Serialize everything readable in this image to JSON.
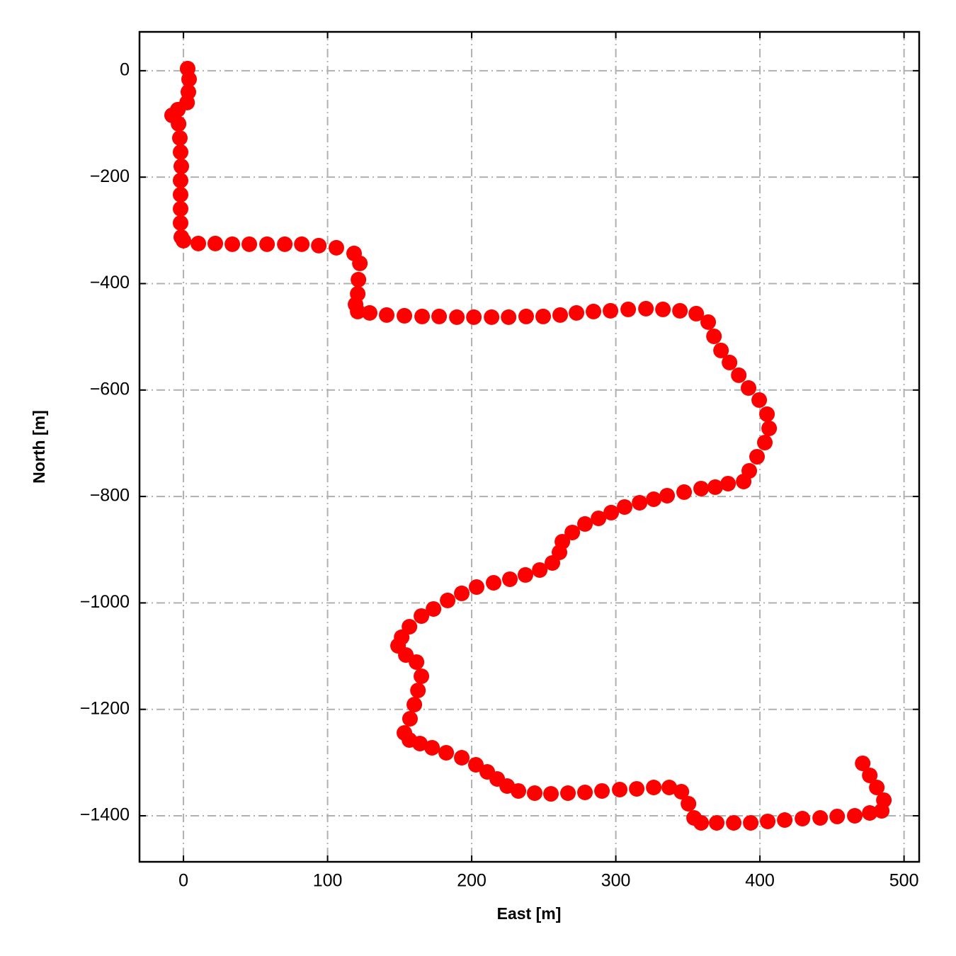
{
  "chart_data": {
    "type": "scatter",
    "xlabel": "East [m]",
    "ylabel": "North [m]",
    "xlim": [
      -30.5,
      510.5
    ],
    "ylim": [
      -1486.5,
      73
    ],
    "xticks": [
      0,
      100,
      200,
      300,
      400,
      500
    ],
    "yticks": [
      0,
      {
        "value": -200,
        "label": "−200"
      },
      {
        "value": -400,
        "label": "−400"
      },
      {
        "value": -600,
        "label": "−600"
      },
      {
        "value": -800,
        "label": "−800"
      },
      {
        "value": -1000,
        "label": "−1000"
      },
      {
        "value": -1200,
        "label": "−1200"
      },
      {
        "value": -1400,
        "label": "−1400"
      }
    ],
    "grid": true,
    "color": "#ff0000",
    "x": [
      2.9,
      3.9,
      3.4,
      2.5,
      -3.9,
      -7.9,
      -3.4,
      -2.5,
      -2.0,
      -1.5,
      -2.0,
      -2.0,
      -2.0,
      -2.0,
      -1.5,
      0,
      10.3,
      22.1,
      33.9,
      45.7,
      58.0,
      70.3,
      82.1,
      93.9,
      106.1,
      118.4,
      122.4,
      121.4,
      120.9,
      119.4,
      120.9,
      129.2,
      141.0,
      153.3,
      165.6,
      177.4,
      189.7,
      201.5,
      213.8,
      225.6,
      237.8,
      249.6,
      261.4,
      272.7,
      284.5,
      296.3,
      308.6,
      320.9,
      332.7,
      344.5,
      355.8,
      364.1,
      368.1,
      373.0,
      378.9,
      385.3,
      392.1,
      399.5,
      404.9,
      406.4,
      403.4,
      398.0,
      392.6,
      388.7,
      377.9,
      369.0,
      359.2,
      347.4,
      335.6,
      326.3,
      316.5,
      306.1,
      296.8,
      288.0,
      278.6,
      269.8,
      262.9,
      260.9,
      256.0,
      247.2,
      237.3,
      226.5,
      215.2,
      203.4,
      193.1,
      183.3,
      173.5,
      165.1,
      156.8,
      151.4,
      148.9,
      154.3,
      161.7,
      165.1,
      162.7,
      160.2,
      157.2,
      153.3,
      156.8,
      164.1,
      172.5,
      182.3,
      193.1,
      202.9,
      210.8,
      217.7,
      224.6,
      232.4,
      243.7,
      255.0,
      266.8,
      278.6,
      290.4,
      302.7,
      314.5,
      326.3,
      337.1,
      345.5,
      350.4,
      354.3,
      359.2,
      370.0,
      381.8,
      393.6,
      405.4,
      417.2,
      429.5,
      441.8,
      453.6,
      465.8,
      476.2,
      484.5,
      486.0,
      481.1,
      476.2,
      471.3
    ],
    "values": [
      4.0,
      -16.0,
      -39.9,
      -59.9,
      -73.2,
      -83.8,
      -99.8,
      -126.4,
      -153.0,
      -179.7,
      -206.3,
      -232.9,
      -259.5,
      -286.1,
      -312.7,
      -319.4,
      -324.7,
      -324.7,
      -326.0,
      -326.0,
      -326.0,
      -326.0,
      -326.0,
      -328.7,
      -332.7,
      -343.3,
      -362.0,
      -392.6,
      -419.2,
      -439.2,
      -452.5,
      -455.1,
      -459.1,
      -460.5,
      -461.8,
      -461.8,
      -463.1,
      -463.1,
      -463.1,
      -463.1,
      -461.8,
      -461.8,
      -459.1,
      -455.1,
      -452.5,
      -451.1,
      -448.5,
      -447.1,
      -448.5,
      -451.1,
      -456.5,
      -472.4,
      -499.1,
      -525.7,
      -548.3,
      -572.2,
      -596.2,
      -618.8,
      -645.4,
      -672.1,
      -698.7,
      -725.3,
      -751.9,
      -771.9,
      -775.9,
      -782.5,
      -785.2,
      -791.8,
      -798.5,
      -805.2,
      -811.8,
      -819.8,
      -830.4,
      -841.1,
      -851.7,
      -867.7,
      -885.0,
      -905.0,
      -924.9,
      -938.2,
      -947.5,
      -955.5,
      -962.2,
      -970.2,
      -982.1,
      -995.4,
      -1011.4,
      -1024.7,
      -1044.7,
      -1064.6,
      -1080.6,
      -1097.9,
      -1111.2,
      -1137.8,
      -1164.5,
      -1191.1,
      -1217.7,
      -1244.3,
      -1257.6,
      -1264.3,
      -1272.2,
      -1281.6,
      -1290.9,
      -1304.2,
      -1317.5,
      -1330.8,
      -1344.1,
      -1353.4,
      -1357.4,
      -1358.8,
      -1357.4,
      -1356.1,
      -1353.4,
      -1350.8,
      -1349.4,
      -1346.8,
      -1346.8,
      -1354.8,
      -1377.4,
      -1404.0,
      -1413.3,
      -1413.3,
      -1413.3,
      -1413.3,
      -1410.6,
      -1408.0,
      -1405.3,
      -1404.0,
      -1401.3,
      -1400.0,
      -1394.7,
      -1390.7,
      -1370.7,
      -1346.8,
      -1324.1,
      -1301.5
    ]
  }
}
